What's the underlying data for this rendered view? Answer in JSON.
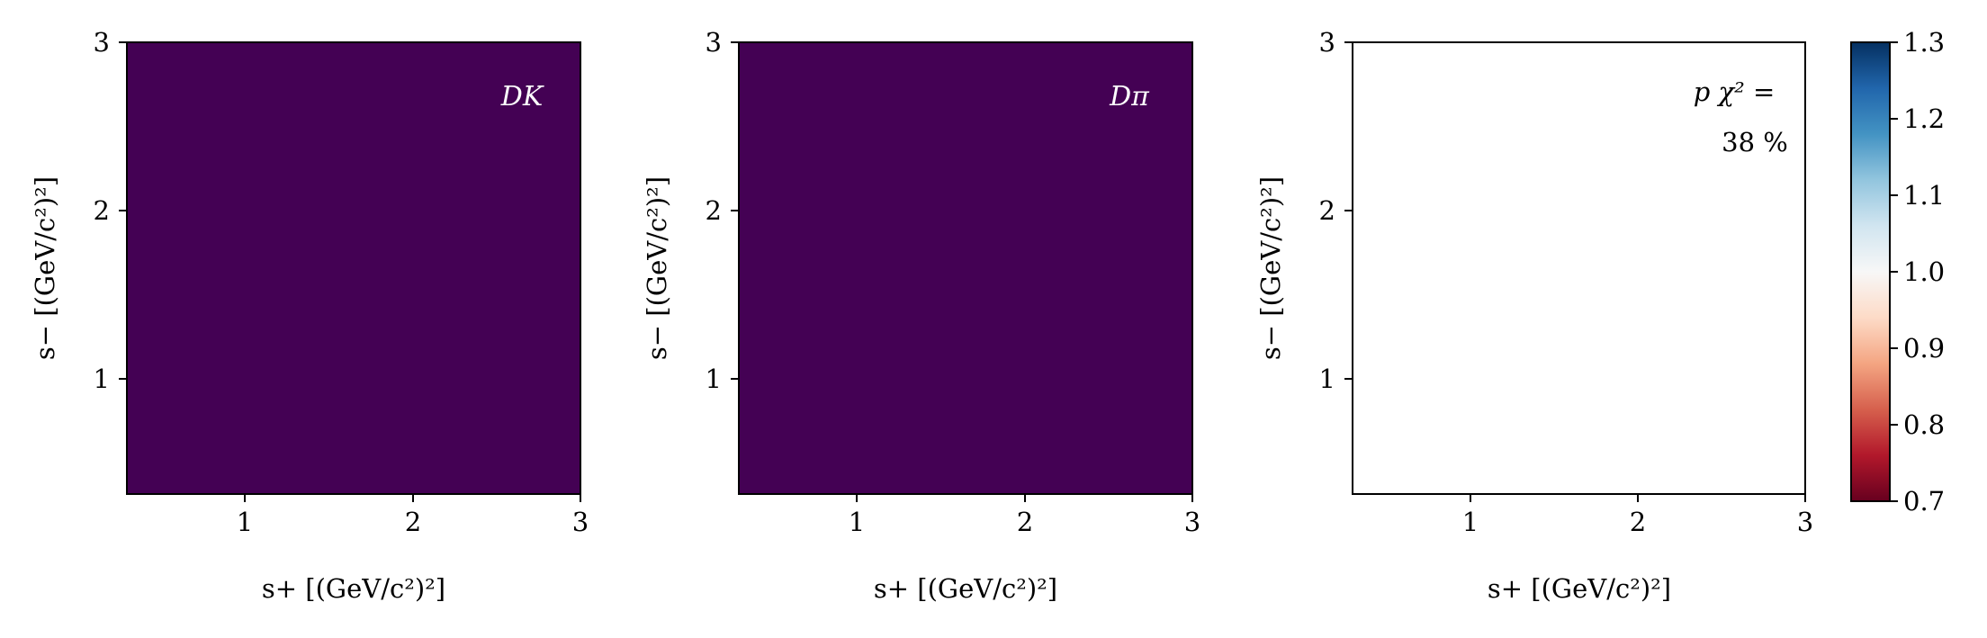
{
  "figure": {
    "panels": [
      {
        "label": "DK",
        "xlabel": "s+ [(GeV/c²)²]",
        "ylabel": "s− [(GeV/c²)²]",
        "xticks": [
          "1",
          "2",
          "3"
        ],
        "yticks": [
          "1",
          "2",
          "3"
        ]
      },
      {
        "label": "Dπ",
        "xlabel": "s+ [(GeV/c²)²]",
        "ylabel": "s− [(GeV/c²)²]",
        "xticks": [
          "1",
          "2",
          "3"
        ],
        "yticks": [
          "1",
          "2",
          "3"
        ]
      },
      {
        "label_line1": "p χ² =",
        "label_line2": "38 %",
        "xlabel": "s+ [(GeV/c²)²]",
        "ylabel": "s− [(GeV/c²)²]",
        "xticks": [
          "1",
          "2",
          "3"
        ],
        "yticks": [
          "1",
          "2",
          "3"
        ]
      }
    ],
    "colorbar": {
      "ticks": [
        "1.3",
        "1.2",
        "1.1",
        "1.0",
        "0.9",
        "0.8",
        "0.7"
      ]
    }
  },
  "chart_data": [
    {
      "type": "heatmap",
      "title": "",
      "annotation": "DK",
      "xlabel": "s+ [(GeV/c²)²]",
      "ylabel": "s− [(GeV/c²)²]",
      "xlim": [
        0.3,
        3.0
      ],
      "ylim": [
        0.3,
        3.0
      ],
      "bins": 27,
      "colormap": "viridis",
      "background_color": "#440154",
      "description": "Dalitz-plot density, bins filled only inside kinematic boundary"
    },
    {
      "type": "heatmap",
      "title": "",
      "annotation": "Dπ",
      "xlabel": "s+ [(GeV/c²)²]",
      "ylabel": "s− [(GeV/c²)²]",
      "xlim": [
        0.3,
        3.0
      ],
      "ylim": [
        0.3,
        3.0
      ],
      "bins": 27,
      "colormap": "viridis",
      "background_color": "#440154"
    },
    {
      "type": "heatmap",
      "title": "",
      "annotation": "p χ² = 38 %",
      "xlabel": "s+ [(GeV/c²)²]",
      "ylabel": "s− [(GeV/c²)²]",
      "xlim": [
        0.3,
        3.0
      ],
      "ylim": [
        0.3,
        3.0
      ],
      "bins": 27,
      "colormap": "RdBu",
      "color_range": [
        0.7,
        1.3
      ],
      "colorbar_ticks": [
        0.7,
        0.8,
        0.9,
        1.0,
        1.1,
        1.2,
        1.3
      ]
    }
  ]
}
